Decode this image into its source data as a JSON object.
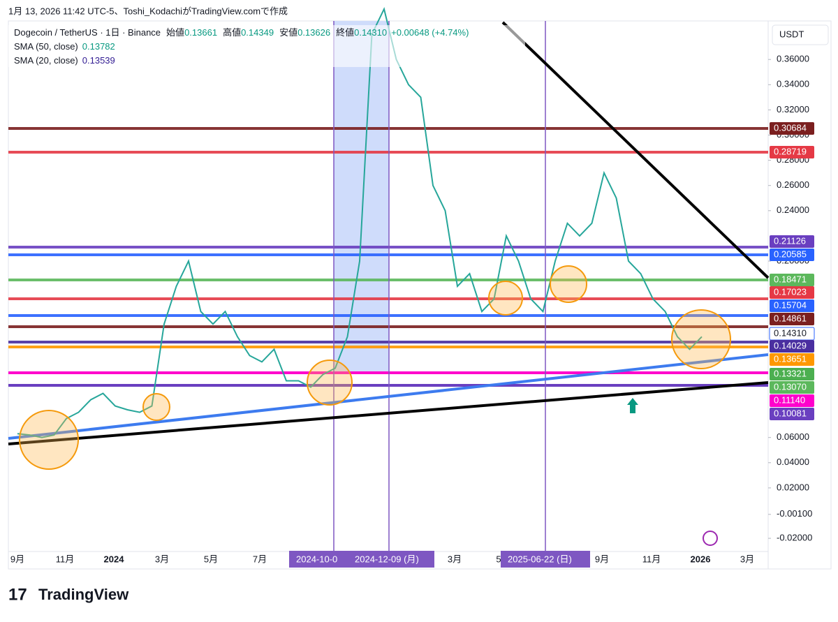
{
  "header": {
    "caption": "1月 13, 2026 11:42 UTC-5、Toshi_KodachiがTradingView.comで作成",
    "symbol": "Dogecoin / TetherUS · 1日 · Binance",
    "open_label": "始値",
    "open": "0.13661",
    "high_label": "高値",
    "high": "0.14349",
    "low_label": "安値",
    "low": "0.13626",
    "close_label": "終値",
    "close": "0.14310",
    "change": "+0.00648 (+4.74%)",
    "sma50": "SMA (50, close)",
    "sma50_value": "0.13782",
    "sma20": "SMA (20, close)",
    "sma20_value": "0.13539",
    "currency": "USDT"
  },
  "chart_data": {
    "type": "line",
    "color": "#26a69a",
    "values": [
      0.063,
      0.062,
      0.06,
      0.062,
      0.075,
      0.08,
      0.09,
      0.095,
      0.085,
      0.082,
      0.08,
      0.085,
      0.15,
      0.18,
      0.2,
      0.16,
      0.15,
      0.16,
      0.14,
      0.125,
      0.12,
      0.13,
      0.105,
      0.105,
      0.1,
      0.11,
      0.115,
      0.14,
      0.2,
      0.38,
      0.4,
      0.36,
      0.34,
      0.33,
      0.26,
      0.24,
      0.18,
      0.19,
      0.16,
      0.17,
      0.22,
      0.2,
      0.17,
      0.16,
      0.2,
      0.23,
      0.22,
      0.23,
      0.27,
      0.25,
      0.2,
      0.19,
      0.17,
      0.16,
      0.14,
      0.13,
      0.14
    ],
    "yticks": [
      {
        "value": 0.36,
        "label": "0.36000"
      },
      {
        "value": 0.34,
        "label": "0.34000"
      },
      {
        "value": 0.32,
        "label": "0.32000"
      },
      {
        "value": 0.3,
        "label": "0.30000"
      },
      {
        "value": 0.28,
        "label": "0.28000"
      },
      {
        "value": 0.26,
        "label": "0.26000"
      },
      {
        "value": 0.24,
        "label": "0.24000"
      },
      {
        "value": 0.2,
        "label": "0.20000"
      },
      {
        "value": 0.06,
        "label": "0.06000"
      },
      {
        "value": 0.04,
        "label": "0.04000"
      },
      {
        "value": 0.02,
        "label": "0.02000"
      },
      {
        "value": -0.001,
        "label": "-0.00100"
      },
      {
        "value": -0.02,
        "label": "-0.02000"
      }
    ],
    "price_tags": [
      {
        "label": "0.30684",
        "color": "#7b1f1f"
      },
      {
        "label": "0.28719",
        "color": "#e53945"
      },
      {
        "label": "0.21126",
        "color": "#6a3fc0"
      },
      {
        "label": "0.20585",
        "color": "#2962ff"
      },
      {
        "label": "0.18471",
        "color": "#5cb85c"
      },
      {
        "label": "0.17023",
        "color": "#e53945"
      },
      {
        "label": "0.15704",
        "color": "#2962ff"
      },
      {
        "label": "0.14861",
        "color": "#7b1f1f"
      },
      {
        "label": "0.14310",
        "color": "#ffffff"
      },
      {
        "label": "0.14029",
        "color": "#4a2fa0"
      },
      {
        "label": "0.13651",
        "color": "#ff9800"
      },
      {
        "label": "0.13321",
        "color": "#4caf50"
      },
      {
        "label": "0.13070",
        "color": "#5cb85c"
      },
      {
        "label": "0.11140",
        "color": "#ff00cc"
      },
      {
        "label": "0.10081",
        "color": "#6a3fc0"
      }
    ],
    "xlabels": [
      "9月",
      "11月",
      "2024",
      "3月",
      "5月",
      "7月",
      "3月",
      "5",
      "9月",
      "11月",
      "2026",
      "3月"
    ],
    "date_badges": [
      "2024-10-0",
      "2024-12-09 (月)",
      "2025-06-22 (日)"
    ]
  },
  "footer": {
    "brand": "TradingView"
  }
}
